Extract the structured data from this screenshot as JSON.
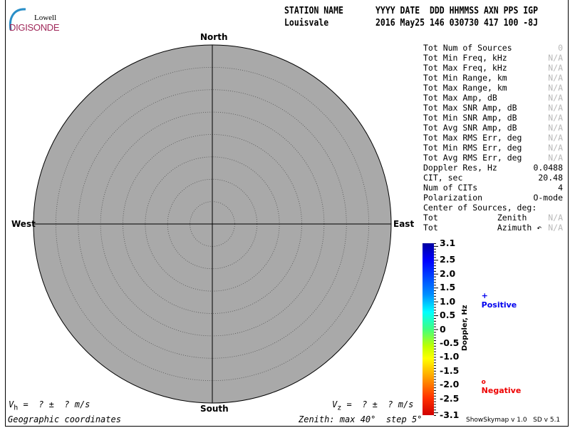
{
  "logo": {
    "top": "Lowell",
    "bottom": "DIGISONDE"
  },
  "header": {
    "row1_station": "STATION NAME",
    "row1_cols": "YYYY DATE  DDD HHMMSS AXN PPS IGP",
    "row2_station": "Louisvale",
    "row2_cols": "2016 May25 146 030730 417 100 -8J"
  },
  "plot": {
    "north": "North",
    "south": "South",
    "east": "East",
    "west": "West",
    "fill_color": "#a9a9a9",
    "zenith_max": 40,
    "zenith_step": 5
  },
  "stats": [
    {
      "label": "Tot Num of Sources",
      "value": "0",
      "muted": true
    },
    {
      "label": "Tot Min Freq, kHz",
      "value": "N/A",
      "muted": true
    },
    {
      "label": "Tot Max Freq, kHz",
      "value": "N/A",
      "muted": true
    },
    {
      "label": "Tot Min Range, km",
      "value": "N/A",
      "muted": true
    },
    {
      "label": "Tot Max Range, km",
      "value": "N/A",
      "muted": true
    },
    {
      "label": "Tot Max Amp, dB",
      "value": "N/A",
      "muted": true
    },
    {
      "label": "Tot Max SNR Amp, dB",
      "value": "N/A",
      "muted": true
    },
    {
      "label": "Tot Min SNR Amp, dB",
      "value": "N/A",
      "muted": true
    },
    {
      "label": "Tot Avg SNR Amp, dB",
      "value": "N/A",
      "muted": true
    },
    {
      "label": "Tot Max RMS Err, deg",
      "value": "N/A",
      "muted": true
    },
    {
      "label": "Tot Min RMS Err, deg",
      "value": "N/A",
      "muted": true
    },
    {
      "label": "Tot Avg RMS Err, deg",
      "value": "N/A",
      "muted": true
    },
    {
      "label": "Doppler Res, Hz",
      "value": "0.0488",
      "muted": false
    },
    {
      "label": "CIT, sec",
      "value": "20.48",
      "muted": false
    },
    {
      "label": "Num of CITs",
      "value": "4",
      "muted": false
    },
    {
      "label": "Polarization",
      "value": "O-mode",
      "muted": false
    },
    {
      "label": "Center of Sources, deg:",
      "value": "",
      "muted": false
    },
    {
      "label": "Tot            Zenith",
      "value": "N/A",
      "muted": true
    },
    {
      "label": "Tot            Azimuth ↶",
      "value": "N/A",
      "muted": true
    }
  ],
  "colorbar": {
    "label": "Doppler, Hz",
    "ticks": [
      "3.1",
      "2.5",
      "2.0",
      "1.5",
      "1.0",
      "0.5",
      "0",
      "-0.5",
      "-1.0",
      "-1.5",
      "-2.0",
      "-2.5",
      "-3.1"
    ],
    "positive_label": "Positive",
    "positive_symbol": "+",
    "positive_color": "#0000ee",
    "negative_label": "Negative",
    "negative_symbol": "o",
    "negative_color": "#ee0000"
  },
  "footer": {
    "vh": "V",
    "vh_sub": "h",
    "vh_rest": " =  ? ±  ? m/s",
    "vz": "V",
    "vz_sub": "z",
    "vz_rest": " =  ? ±  ? m/s",
    "coords": "Geographic coordinates",
    "zenith": "Zenith: max 40°  step 5°",
    "version": "ShowSkymap v 1.0   SD v 5.1"
  }
}
